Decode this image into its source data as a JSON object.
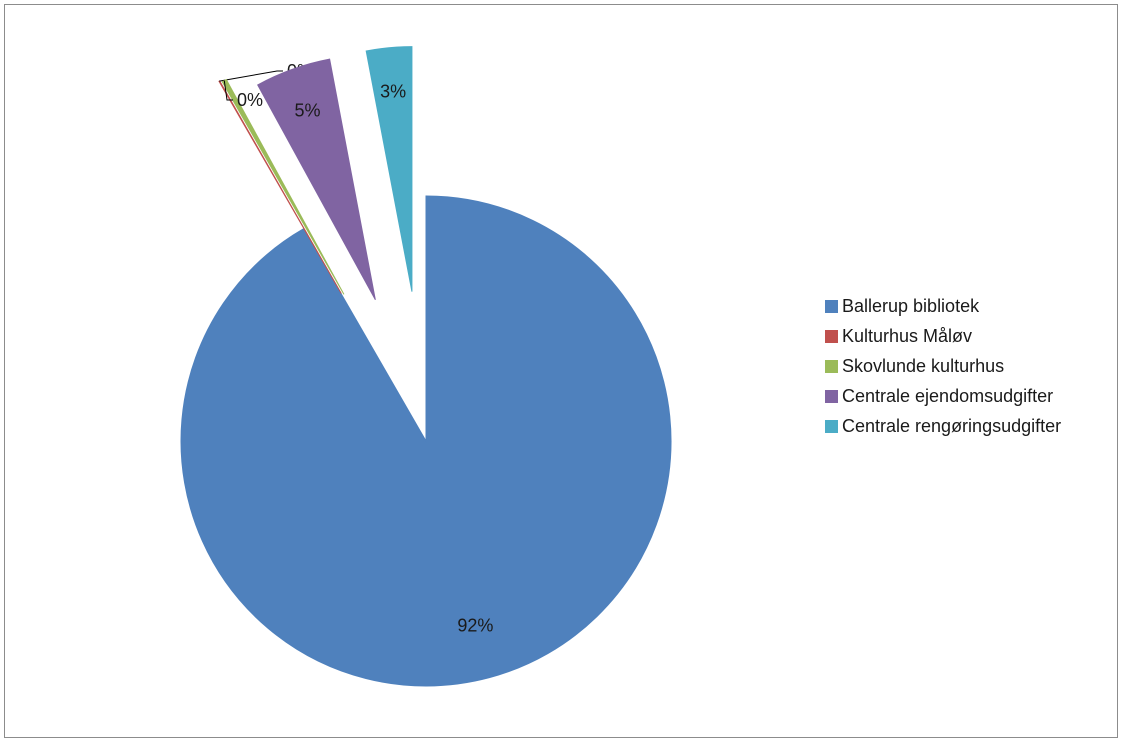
{
  "chart_data": {
    "type": "pie",
    "title": "",
    "legend_position": "right",
    "start_angle_deg": 0,
    "exploded": true,
    "slices": [
      {
        "label": "Ballerup bibliotek",
        "value": 92,
        "data_label": "92%",
        "color": "#4f81bd"
      },
      {
        "label": "Kulturhus Måløv",
        "value": 0.05,
        "data_label": "0%",
        "color": "#c0504d"
      },
      {
        "label": "Skovlunde kulturhus",
        "value": 0.3,
        "data_label": "0%",
        "color": "#9bbb59"
      },
      {
        "label": "Centrale ejendomsudgifter",
        "value": 5,
        "data_label": "5%",
        "color": "#8064a2"
      },
      {
        "label": "Centrale rengøringsudgifter",
        "value": 3,
        "data_label": "3%",
        "color": "#4bacc6"
      }
    ]
  }
}
